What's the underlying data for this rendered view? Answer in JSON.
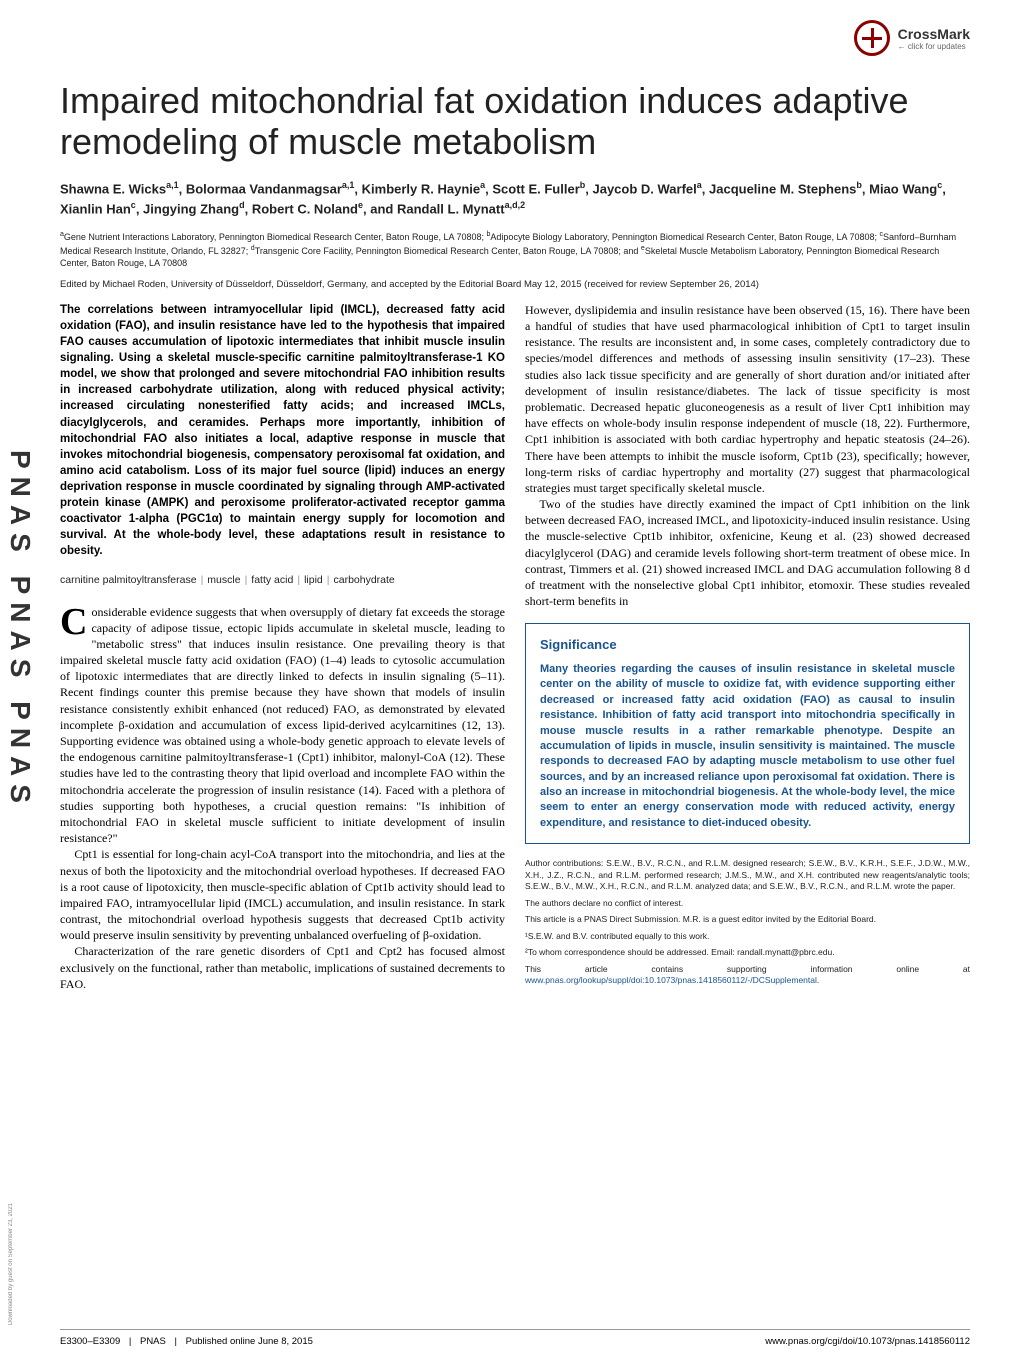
{
  "sidebar": {
    "text": "PNAS  PNAS  PNAS"
  },
  "crossmark": {
    "label": "CrossMark",
    "sub": "← click for updates"
  },
  "title": "Impaired mitochondrial fat oxidation induces adaptive remodeling of muscle metabolism",
  "authors_html": "Shawna E. Wicks<sup>a,1</sup>, Bolormaa Vandanmagsar<sup>a,1</sup>, Kimberly R. Haynie<sup>a</sup>, Scott E. Fuller<sup>b</sup>, Jaycob D. Warfel<sup>a</sup>, Jacqueline M. Stephens<sup>b</sup>, Miao Wang<sup>c</sup>, Xianlin Han<sup>c</sup>, Jingying Zhang<sup>d</sup>, Robert C. Noland<sup>e</sup>, and Randall L. Mynatt<sup>a,d,2</sup>",
  "affiliations_html": "<sup>a</sup>Gene Nutrient Interactions Laboratory, Pennington Biomedical Research Center, Baton Rouge, LA 70808; <sup>b</sup>Adipocyte Biology Laboratory, Pennington Biomedical Research Center, Baton Rouge, LA 70808; <sup>c</sup>Sanford–Burnham Medical Research Institute, Orlando, FL 32827; <sup>d</sup>Transgenic Core Facility, Pennington Biomedical Research Center, Baton Rouge, LA 70808; and <sup>e</sup>Skeletal Muscle Metabolism Laboratory, Pennington Biomedical Research Center, Baton Rouge, LA 70808",
  "edited": "Edited by Michael Roden, University of Düsseldorf, Düsseldorf, Germany, and accepted by the Editorial Board May 12, 2015 (received for review September 26, 2014)",
  "abstract": "The correlations between intramyocellular lipid (IMCL), decreased fatty acid oxidation (FAO), and insulin resistance have led to the hypothesis that impaired FAO causes accumulation of lipotoxic intermediates that inhibit muscle insulin signaling. Using a skeletal muscle-specific carnitine palmitoyltransferase-1 KO model, we show that prolonged and severe mitochondrial FAO inhibition results in increased carbohydrate utilization, along with reduced physical activity; increased circulating nonesterified fatty acids; and increased IMCLs, diacylglycerols, and ceramides. Perhaps more importantly, inhibition of mitochondrial FAO also initiates a local, adaptive response in muscle that invokes mitochondrial biogenesis, compensatory peroxisomal fat oxidation, and amino acid catabolism. Loss of its major fuel source (lipid) induces an energy deprivation response in muscle coordinated by signaling through AMP-activated protein kinase (AMPK) and peroxisome proliferator-activated receptor gamma coactivator 1-alpha (PGC1α) to maintain energy supply for locomotion and survival. At the whole-body level, these adaptations result in resistance to obesity.",
  "keywords": [
    "carnitine palmitoyltransferase",
    "muscle",
    "fatty acid",
    "lipid",
    "carbohydrate"
  ],
  "col1_paras": [
    "onsiderable evidence suggests that when oversupply of dietary fat exceeds the storage capacity of adipose tissue, ectopic lipids accumulate in skeletal muscle, leading to \"metabolic stress\" that induces insulin resistance. One prevailing theory is that impaired skeletal muscle fatty acid oxidation (FAO) (1–4) leads to cytosolic accumulation of lipotoxic intermediates that are directly linked to defects in insulin signaling (5–11). Recent findings counter this premise because they have shown that models of insulin resistance consistently exhibit enhanced (not reduced) FAO, as demonstrated by elevated incomplete β-oxidation and accumulation of excess lipid-derived acylcarnitines (12, 13). Supporting evidence was obtained using a whole-body genetic approach to elevate levels of the endogenous carnitine palmitoyltransferase-1 (Cpt1) inhibitor, malonyl-CoA (12). These studies have led to the contrasting theory that lipid overload and incomplete FAO within the mitochondria accelerate the progression of insulin resistance (14). Faced with a plethora of studies supporting both hypotheses, a crucial question remains: \"Is inhibition of mitochondrial FAO in skeletal muscle sufficient to initiate development of insulin resistance?\"",
    "Cpt1 is essential for long-chain acyl-CoA transport into the mitochondria, and lies at the nexus of both the lipotoxicity and the mitochondrial overload hypotheses. If decreased FAO is a root cause of lipotoxicity, then muscle-specific ablation of Cpt1b activity should lead to impaired FAO, intramyocellular lipid (IMCL) accumulation, and insulin resistance. In stark contrast, the mitochondrial overload hypothesis suggests that decreased Cpt1b activity would preserve insulin sensitivity by preventing unbalanced overfueling of β-oxidation.",
    "Characterization of the rare genetic disorders of Cpt1 and Cpt2 has focused almost exclusively on the functional, rather than metabolic, implications of sustained decrements to FAO."
  ],
  "col2_paras": [
    "However, dyslipidemia and insulin resistance have been observed (15, 16). There have been a handful of studies that have used pharmacological inhibition of Cpt1 to target insulin resistance. The results are inconsistent and, in some cases, completely contradictory due to species/model differences and methods of assessing insulin sensitivity (17–23). These studies also lack tissue specificity and are generally of short duration and/or initiated after development of insulin resistance/diabetes. The lack of tissue specificity is most problematic. Decreased hepatic gluconeogenesis as a result of liver Cpt1 inhibition may have effects on whole-body insulin response independent of muscle (18, 22). Furthermore, Cpt1 inhibition is associated with both cardiac hypertrophy and hepatic steatosis (24–26). There have been attempts to inhibit the muscle isoform, Cpt1b (23), specifically; however, long-term risks of cardiac hypertrophy and mortality (27) suggest that pharmacological strategies must target specifically skeletal muscle.",
    "Two of the studies have directly examined the impact of Cpt1 inhibition on the link between decreased FAO, increased IMCL, and lipotoxicity-induced insulin resistance. Using the muscle-selective Cpt1b inhibitor, oxfenicine, Keung et al. (23) showed decreased diacylglycerol (DAG) and ceramide levels following short-term treatment of obese mice. In contrast, Timmers et al. (21) showed increased IMCL and DAG accumulation following 8 d of treatment with the nonselective global Cpt1 inhibitor, etomoxir. These studies revealed short-term benefits in"
  ],
  "significance": {
    "title": "Significance",
    "body": "Many theories regarding the causes of insulin resistance in skeletal muscle center on the ability of muscle to oxidize fat, with evidence supporting either decreased or increased fatty acid oxidation (FAO) as causal to insulin resistance. Inhibition of fatty acid transport into mitochondria specifically in mouse muscle results in a rather remarkable phenotype. Despite an accumulation of lipids in muscle, insulin sensitivity is maintained. The muscle responds to decreased FAO by adapting muscle metabolism to use other fuel sources, and by an increased reliance upon peroxisomal fat oxidation. There is also an increase in mitochondrial biogenesis. At the whole-body level, the mice seem to enter an energy conservation mode with reduced activity, energy expenditure, and resistance to diet-induced obesity."
  },
  "notes": {
    "contributions": "Author contributions: S.E.W., B.V., R.C.N., and R.L.M. designed research; S.E.W., B.V., K.R.H., S.E.F., J.D.W., M.W., X.H., J.Z., R.C.N., and R.L.M. performed research; J.M.S., M.W., and X.H. contributed new reagents/analytic tools; S.E.W., B.V., M.W., X.H., R.C.N., and R.L.M. analyzed data; and S.E.W., B.V., R.C.N., and R.L.M. wrote the paper.",
    "conflict": "The authors declare no conflict of interest.",
    "submission": "This article is a PNAS Direct Submission. M.R. is a guest editor invited by the Editorial Board.",
    "equal": "¹S.E.W. and B.V. contributed equally to this work.",
    "corresp": "²To whom correspondence should be addressed. Email: randall.mynatt@pbrc.edu.",
    "supp": "This article contains supporting information online at ",
    "supp_link": "www.pnas.org/lookup/suppl/doi:10.1073/pnas.1418560112/-/DCSupplemental",
    "supp_end": "."
  },
  "footer": {
    "left_pages": "E3300–E3309",
    "left_journal": "PNAS",
    "left_date": "Published online June 8, 2015",
    "right": "www.pnas.org/cgi/doi/10.1073/pnas.1418560112"
  },
  "download": "Downloaded by guest on September 23, 2021",
  "colors": {
    "pnas_blue": "#1a5490",
    "crossmark_red": "#8B0000"
  }
}
